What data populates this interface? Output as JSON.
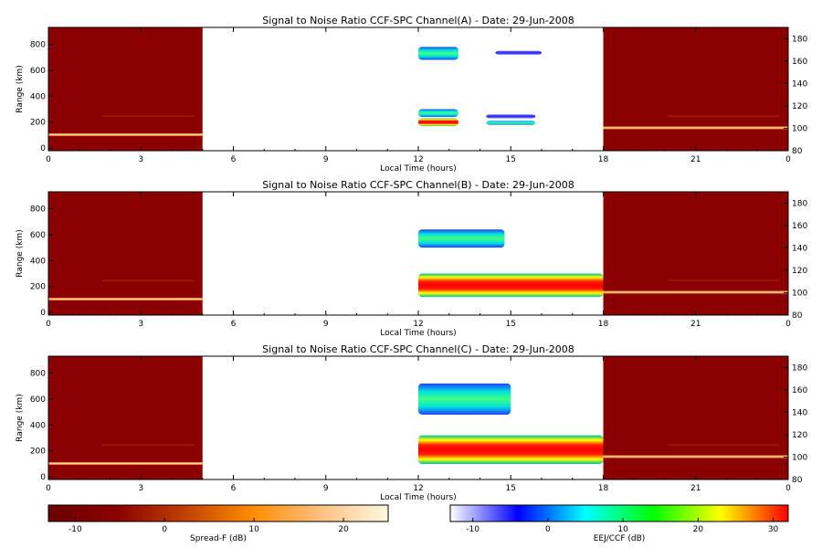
{
  "chart_data": {
    "charts": [
      {
        "type": "heatmap",
        "title": "Signal to Noise Ratio CCF-SPC Channel(A) - Date: 29-Jun-2008",
        "xlabel": "Local Time (hours)",
        "ylabel_left": "Range (km)",
        "x_ticks": [
          "0",
          "3",
          "6",
          "9",
          "12",
          "15",
          "18",
          "21",
          "0"
        ],
        "x_range_hours": [
          0,
          24
        ],
        "y_left_ticks": [
          "0",
          "200",
          "400",
          "600",
          "800"
        ],
        "y_left_range_km": [
          -20,
          930
        ],
        "y_right_ticks": [
          "80",
          "100",
          "120",
          "140",
          "160",
          "180"
        ],
        "y_right_range_km": [
          80,
          190
        ],
        "night_segments_hours": [
          [
            0,
            5
          ],
          [
            18,
            24
          ]
        ],
        "night_bright_layer_km_right": 100,
        "day_patches": [
          {
            "x0": 12.0,
            "x1": 13.3,
            "y0": 680,
            "y1": 780,
            "level": "mid"
          },
          {
            "x0": 14.5,
            "x1": 16.0,
            "y0": 720,
            "y1": 750,
            "level": "low"
          },
          {
            "x0": 12.0,
            "x1": 13.3,
            "y0": 240,
            "y1": 300,
            "level": "mid"
          },
          {
            "x0": 12.0,
            "x1": 13.3,
            "y0": 170,
            "y1": 230,
            "level": "high"
          },
          {
            "x0": 14.2,
            "x1": 15.8,
            "y0": 230,
            "y1": 260,
            "level": "low"
          },
          {
            "x0": 14.2,
            "x1": 15.8,
            "y0": 180,
            "y1": 210,
            "level": "mid"
          }
        ]
      },
      {
        "type": "heatmap",
        "title": "Signal to Noise Ratio CCF-SPC Channel(B) - Date: 29-Jun-2008",
        "xlabel": "Local Time (hours)",
        "ylabel_left": "Range (km)",
        "x_ticks": [
          "0",
          "3",
          "6",
          "9",
          "12",
          "15",
          "18",
          "21",
          "0"
        ],
        "x_range_hours": [
          0,
          24
        ],
        "y_left_ticks": [
          "0",
          "200",
          "400",
          "600",
          "800"
        ],
        "y_left_range_km": [
          -20,
          930
        ],
        "y_right_ticks": [
          "80",
          "100",
          "120",
          "140",
          "160",
          "180"
        ],
        "y_right_range_km": [
          80,
          190
        ],
        "night_segments_hours": [
          [
            0,
            5
          ],
          [
            18,
            24
          ]
        ],
        "night_bright_layer_km_right": 100,
        "day_patches": [
          {
            "x0": 12.0,
            "x1": 14.8,
            "y0": 500,
            "y1": 640,
            "level": "mid"
          },
          {
            "x0": 12.0,
            "x1": 18.0,
            "y0": 120,
            "y1": 300,
            "level": "high"
          }
        ]
      },
      {
        "type": "heatmap",
        "title": "Signal to Noise Ratio CCF-SPC Channel(C) - Date: 29-Jun-2008",
        "xlabel": "Local Time (hours)",
        "ylabel_left": "Range (km)",
        "x_ticks": [
          "0",
          "3",
          "6",
          "9",
          "12",
          "15",
          "18",
          "21",
          "0"
        ],
        "x_range_hours": [
          0,
          24
        ],
        "y_left_ticks": [
          "0",
          "200",
          "400",
          "600",
          "800"
        ],
        "y_left_range_km": [
          -20,
          930
        ],
        "y_right_ticks": [
          "80",
          "100",
          "120",
          "140",
          "160",
          "180"
        ],
        "y_right_range_km": [
          80,
          190
        ],
        "night_segments_hours": [
          [
            0,
            5
          ],
          [
            18,
            24
          ]
        ],
        "night_bright_layer_km_right": 100,
        "day_patches": [
          {
            "x0": 12.0,
            "x1": 15.0,
            "y0": 480,
            "y1": 720,
            "level": "mid"
          },
          {
            "x0": 12.0,
            "x1": 18.0,
            "y0": 100,
            "y1": 320,
            "level": "high"
          }
        ]
      }
    ],
    "colorbars": [
      {
        "label": "Spread-F (dB)",
        "ticks": [
          "-10",
          "0",
          "10",
          "20"
        ],
        "range": [
          -13,
          25
        ],
        "colors": [
          "#6b0000",
          "#8b0000",
          "#c04000",
          "#ff8c00",
          "#ffc080",
          "#fff8e0"
        ]
      },
      {
        "label": "EEJ/CCF (dB)",
        "ticks": [
          "-10",
          "0",
          "10",
          "20",
          "30"
        ],
        "range": [
          -13,
          32
        ],
        "colors": [
          "#ffffff",
          "#0000ff",
          "#00ffff",
          "#00ff00",
          "#ffff00",
          "#ff0000"
        ]
      }
    ]
  }
}
